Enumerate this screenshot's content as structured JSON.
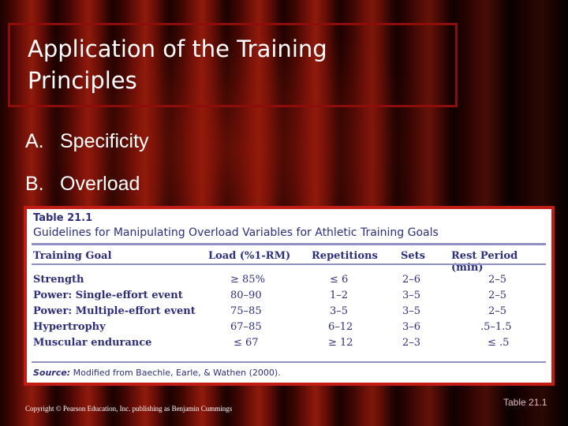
{
  "slide": {
    "title_line1": "Application of the Training",
    "title_line2": "Principles",
    "bullets": [
      {
        "label": "A.",
        "text": "Specificity"
      },
      {
        "label": "B.",
        "text": "Overload"
      }
    ],
    "copyright": "Copyright © Pearson Education, Inc. publishing as Benjamin Cummings",
    "table_ref": "Table 21.1"
  },
  "table": {
    "number": "Table 21.1",
    "caption": "Guidelines for Manipulating Overload Variables for Athletic Training Goals",
    "headers": [
      "Training Goal",
      "Load (%1-RM)",
      "Repetitions",
      "Sets",
      "Rest Period (min)"
    ],
    "rows": [
      [
        "Strength",
        "≥ 85%",
        "≤ 6",
        "2–6",
        "2–5"
      ],
      [
        "Power: Single-effort event",
        "80–90",
        "1–2",
        "3–5",
        "2–5"
      ],
      [
        "Power: Multiple-effort event",
        "75–85",
        "3–5",
        "3–5",
        "2–5"
      ],
      [
        "Hypertrophy",
        "67–85",
        "6–12",
        "3–6",
        ".5–1.5"
      ],
      [
        "Muscular endurance",
        "≤ 67",
        "≥ 12",
        "2–3",
        "≤ .5"
      ]
    ],
    "source_label": "Source:",
    "source_text": " Modified from Baechle, Earle, & Wathen (2000)."
  }
}
